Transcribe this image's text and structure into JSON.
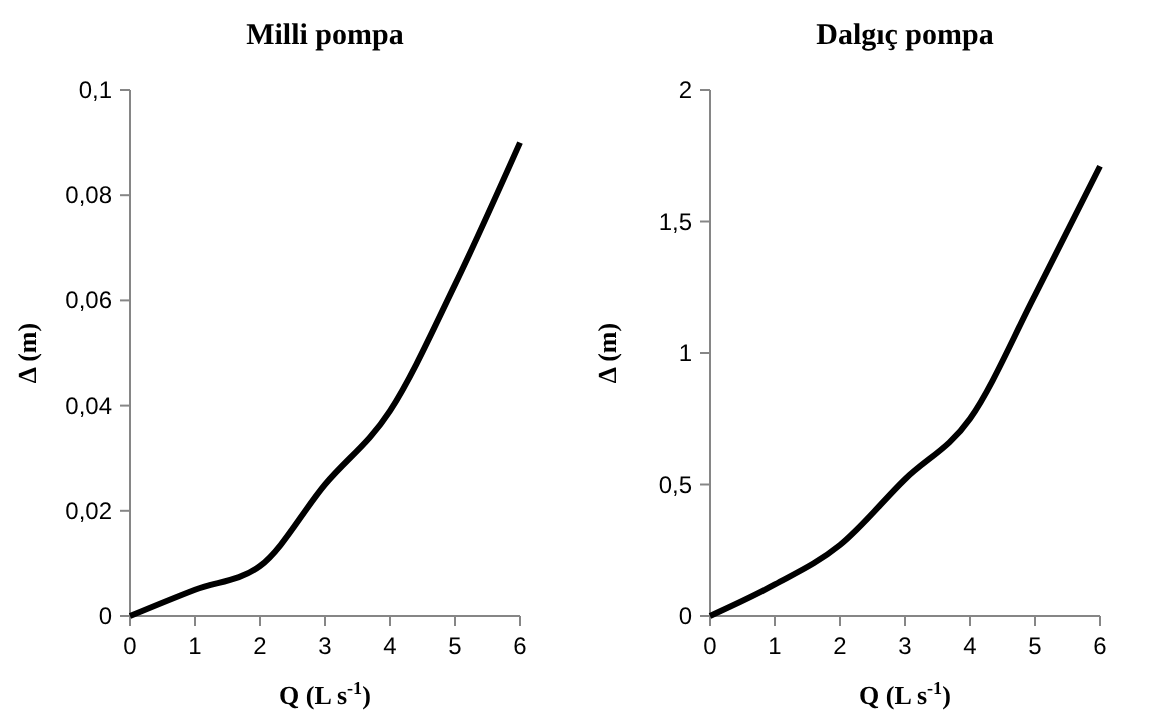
{
  "chart_data": [
    {
      "type": "line",
      "title": "Milli pompa",
      "xlabel": "Q (L s$^{-1}$)",
      "ylabel": "Δ (m)",
      "x": [
        0,
        1,
        2,
        3,
        4,
        5,
        6
      ],
      "series": [
        {
          "color": "#000000",
          "values": [
            0,
            0.005,
            0.0095,
            0.025,
            0.039,
            0.063,
            0.09
          ]
        }
      ],
      "xlim": [
        0,
        6
      ],
      "xticks": [
        0,
        1,
        2,
        3,
        4,
        5,
        6
      ],
      "ylim": [
        0,
        0.1
      ],
      "yticks": [
        0,
        {
          "value": 0.02,
          "label": "0,02"
        },
        {
          "value": 0.04,
          "label": "0,04"
        },
        {
          "value": 0.06,
          "label": "0,06"
        },
        {
          "value": 0.08,
          "label": "0,08"
        },
        {
          "value": 0.1,
          "label": "0,1"
        }
      ],
      "marker": "none",
      "line_style": "solid"
    },
    {
      "type": "line",
      "title": "Dalgıç pompa",
      "xlabel": "Q (L s$^{-1}$)",
      "ylabel": "Δ (m)",
      "x": [
        0,
        1,
        2,
        3,
        4,
        5,
        6
      ],
      "series": [
        {
          "color": "#000000",
          "values": [
            0,
            0.12,
            0.27,
            0.52,
            0.75,
            1.22,
            1.71
          ]
        }
      ],
      "xlim": [
        0,
        6
      ],
      "xticks": [
        0,
        1,
        2,
        3,
        4,
        5,
        6
      ],
      "ylim": [
        0,
        2
      ],
      "yticks": [
        0,
        {
          "value": 0.5,
          "label": "0,5"
        },
        1,
        {
          "value": 1.5,
          "label": "1,5"
        },
        2
      ],
      "marker": "none",
      "line_style": "solid"
    }
  ]
}
